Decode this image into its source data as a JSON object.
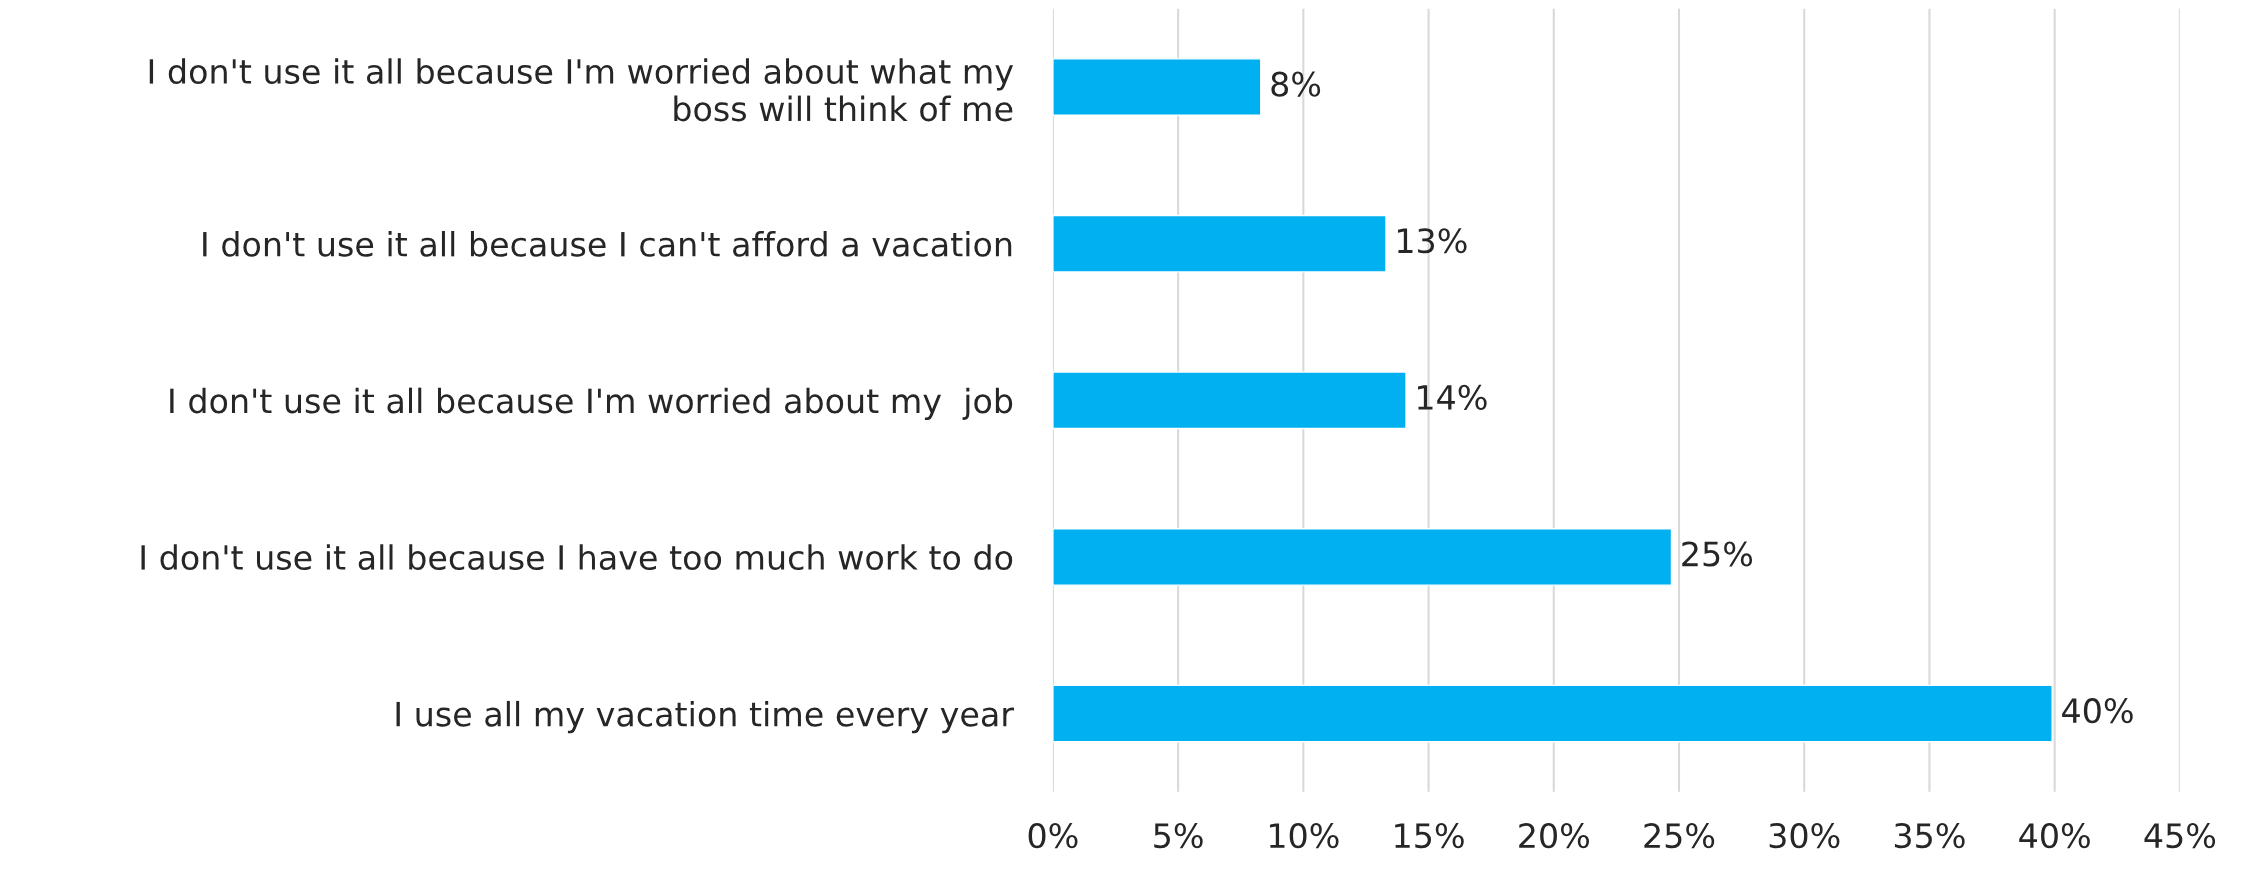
{
  "chart_data": {
    "type": "bar",
    "orientation": "horizontal",
    "categories": [
      "I don't use it all because I'm worried about what my\nboss will think of me",
      "I don't use it all because I can't afford a vacation",
      "I don't use it all because I'm worried about my  job",
      "I don't use it all because I have too much work to do",
      "I use all my vacation time every year"
    ],
    "values": [
      8.3,
      13.3,
      14.1,
      24.7,
      39.9
    ],
    "value_labels": [
      "8%",
      "13%",
      "14%",
      "25%",
      "40%"
    ],
    "color": "#00b0f0",
    "xlim": [
      0,
      45
    ],
    "xticks": [
      {
        "value": 0,
        "label": "0%"
      },
      {
        "value": 5,
        "label": "5%"
      },
      {
        "value": 10,
        "label": "10%"
      },
      {
        "value": 15,
        "label": "15%"
      },
      {
        "value": 20,
        "label": "20%"
      },
      {
        "value": 25,
        "label": "25%"
      },
      {
        "value": 30,
        "label": "30%"
      },
      {
        "value": 35,
        "label": "35%"
      },
      {
        "value": 40,
        "label": "40%"
      },
      {
        "value": 45,
        "label": "45%"
      }
    ],
    "grid": "x",
    "legend": false
  }
}
